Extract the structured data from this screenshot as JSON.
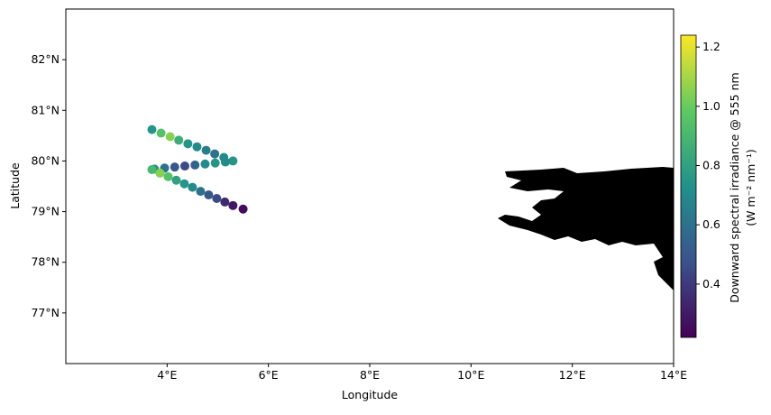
{
  "chart_data": {
    "type": "scatter",
    "x_label": "Longitude",
    "y_label": "Latitude",
    "xlim": [
      2,
      14
    ],
    "ylim": [
      76,
      83
    ],
    "xticks": [
      {
        "value": 4,
        "label": "4°E"
      },
      {
        "value": 6,
        "label": "6°E"
      },
      {
        "value": 8,
        "label": "8°E"
      },
      {
        "value": 10,
        "label": "10°E"
      },
      {
        "value": 12,
        "label": "12°E"
      },
      {
        "value": 14,
        "label": "14°E"
      }
    ],
    "yticks": [
      {
        "value": 77,
        "label": "77°N"
      },
      {
        "value": 78,
        "label": "78°N"
      },
      {
        "value": 79,
        "label": "79°N"
      },
      {
        "value": 80,
        "label": "80°N"
      },
      {
        "value": 81,
        "label": "81°N"
      },
      {
        "value": 82,
        "label": "82°N"
      }
    ],
    "colormap": "viridis",
    "colorbar_label": "Downward spectral irradiance @ 555 nm",
    "colorbar_units": "(W m⁻² nm⁻¹)",
    "clim": [
      0.22,
      1.24
    ],
    "cticks": [
      0.4,
      0.6,
      0.8,
      {
        "value": 1,
        "label": "1.0"
      },
      1.2
    ],
    "x": [
      3.7,
      3.88,
      4.06,
      4.23,
      4.41,
      4.59,
      4.77,
      4.94,
      5.12,
      5.3,
      5.15,
      4.95,
      4.75,
      4.55,
      4.35,
      4.15,
      3.95,
      3.75,
      3.7,
      3.86,
      4.02,
      4.18,
      4.34,
      4.5,
      4.66,
      4.82,
      4.98,
      5.14,
      5.3,
      5.5
    ],
    "y": [
      80.62,
      80.55,
      80.48,
      80.41,
      80.34,
      80.28,
      80.21,
      80.14,
      80.07,
      80.0,
      79.98,
      79.96,
      79.94,
      79.92,
      79.9,
      79.88,
      79.86,
      79.84,
      79.83,
      79.76,
      79.69,
      79.62,
      79.55,
      79.48,
      79.4,
      79.33,
      79.26,
      79.19,
      79.12,
      79.05
    ],
    "values": [
      0.75,
      0.95,
      1.05,
      0.85,
      0.75,
      0.7,
      0.65,
      0.6,
      0.7,
      0.75,
      0.7,
      0.75,
      0.7,
      0.55,
      0.45,
      0.5,
      0.6,
      0.7,
      0.9,
      1.05,
      0.95,
      0.8,
      0.75,
      0.7,
      0.6,
      0.5,
      0.45,
      0.35,
      0.3,
      0.25
    ]
  }
}
